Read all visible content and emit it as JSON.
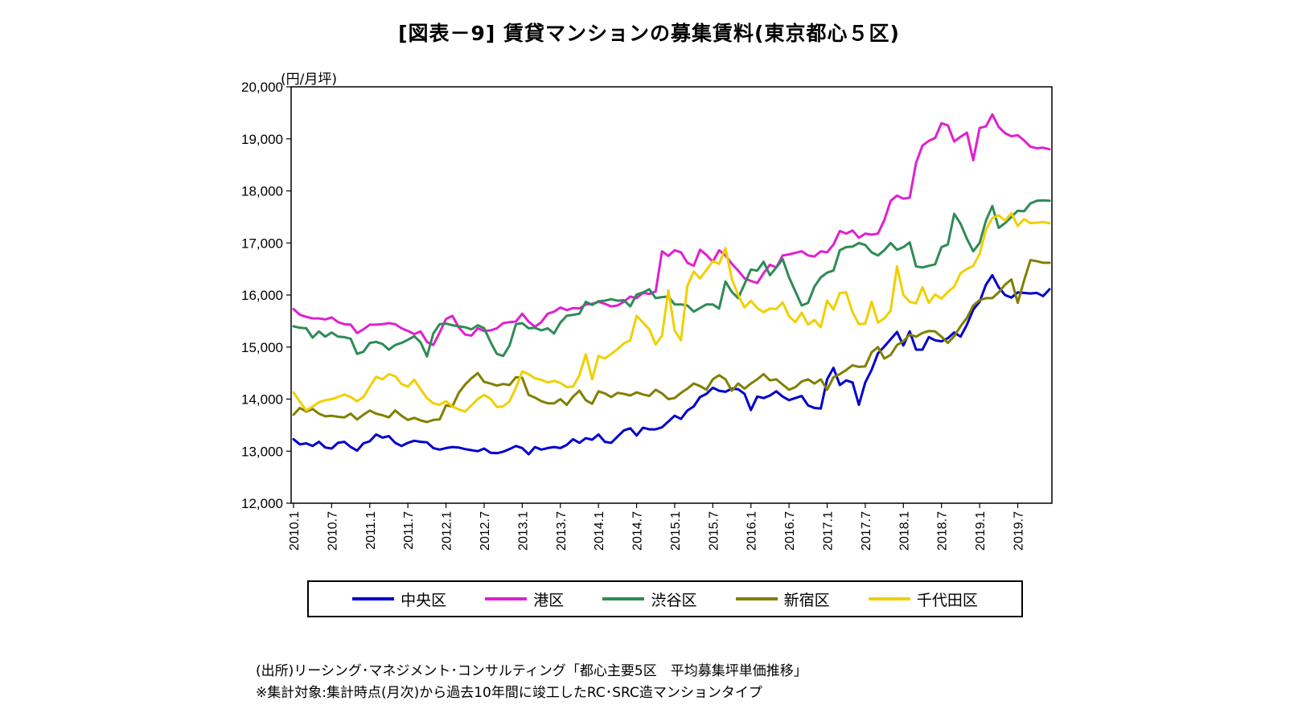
{
  "chart_data": {
    "type": "line",
    "title": "[図表－9] 賃貸マンションの募集賃料(東京都心５区)",
    "unit": "(円/月坪)",
    "ylim": [
      12000,
      20000
    ],
    "y_ticks": [
      "20,000",
      "19,000",
      "18,000",
      "17,000",
      "16,000",
      "15,000",
      "14,000",
      "13,000",
      "12,000"
    ],
    "x_ticks": [
      "2010.1",
      "2010.7",
      "2011.1",
      "2011.7",
      "2012.1",
      "2012.7",
      "2013.1",
      "2013.7",
      "2014.1",
      "2014.7",
      "2015.1",
      "2015.7",
      "2016.1",
      "2016.7",
      "2017.1",
      "2017.7",
      "2018.1",
      "2018.7",
      "2019.1",
      "2019.7"
    ],
    "x_range": "2010.1 - 2019.10 (monthly)",
    "grid": false,
    "legend_position": "bottom",
    "series": [
      {
        "name": "中央区",
        "color": "#0000CC",
        "values": [
          13230,
          13130,
          13150,
          13100,
          13180,
          13070,
          13050,
          13160,
          13180,
          13080,
          13010,
          13150,
          13190,
          13320,
          13260,
          13290,
          13160,
          13100,
          13160,
          13200,
          13180,
          13170,
          13060,
          13030,
          13060,
          13080,
          13070,
          13040,
          13020,
          13000,
          13050,
          12970,
          12960,
          12990,
          13040,
          13100,
          13060,
          12940,
          13080,
          13030,
          13060,
          13080,
          13060,
          13120,
          13230,
          13160,
          13250,
          13220,
          13320,
          13180,
          13160,
          13280,
          13400,
          13440,
          13300,
          13450,
          13420,
          13420,
          13460,
          13570,
          13680,
          13620,
          13780,
          13860,
          14040,
          14100,
          14220,
          14160,
          14140,
          14200,
          14190,
          14100,
          13790,
          14050,
          14020,
          14070,
          14150,
          14050,
          13980,
          14020,
          14060,
          13880,
          13830,
          13820,
          14380,
          14600,
          14270,
          14360,
          14320,
          13890,
          14320,
          14560,
          14880,
          15010,
          15150,
          15290,
          15030,
          15300,
          14950,
          14950,
          15190,
          15130,
          15110,
          15170,
          15280,
          15200,
          15430,
          15720,
          15870,
          16200,
          16380,
          16150,
          16000,
          15950,
          16050,
          16040,
          16030,
          16040,
          15980,
          16110
        ]
      },
      {
        "name": "港区",
        "color": "#E020D0",
        "values": [
          15730,
          15620,
          15580,
          15550,
          15550,
          15530,
          15570,
          15480,
          15440,
          15430,
          15270,
          15340,
          15430,
          15430,
          15440,
          15460,
          15440,
          15360,
          15310,
          15250,
          15300,
          15100,
          15040,
          15280,
          15540,
          15600,
          15380,
          15240,
          15220,
          15360,
          15310,
          15320,
          15360,
          15460,
          15480,
          15490,
          15640,
          15490,
          15390,
          15480,
          15640,
          15680,
          15760,
          15710,
          15750,
          15740,
          15820,
          15830,
          15870,
          15830,
          15780,
          15800,
          15870,
          15970,
          15940,
          16040,
          16020,
          16070,
          16840,
          16750,
          16860,
          16820,
          16620,
          16560,
          16870,
          16770,
          16640,
          16860,
          16760,
          16600,
          16470,
          16320,
          16270,
          16230,
          16420,
          16580,
          16530,
          16760,
          16780,
          16810,
          16840,
          16760,
          16740,
          16840,
          16820,
          16970,
          17230,
          17180,
          17240,
          17100,
          17180,
          17160,
          17180,
          17440,
          17810,
          17910,
          17850,
          17870,
          18540,
          18870,
          18960,
          19020,
          19300,
          19260,
          18950,
          19040,
          19120,
          18590,
          19210,
          19240,
          19470,
          19230,
          19110,
          19050,
          19070,
          18970,
          18850,
          18820,
          18830,
          18800
        ]
      },
      {
        "name": "渋谷区",
        "color": "#2E8B57",
        "values": [
          15400,
          15370,
          15360,
          15180,
          15300,
          15200,
          15280,
          15200,
          15190,
          15160,
          14870,
          14910,
          15080,
          15100,
          15060,
          14950,
          15040,
          15080,
          15140,
          15210,
          15090,
          14820,
          15260,
          15440,
          15450,
          15420,
          15400,
          15380,
          15340,
          15420,
          15360,
          15100,
          14870,
          14830,
          15030,
          15440,
          15460,
          15360,
          15370,
          15320,
          15360,
          15260,
          15470,
          15600,
          15620,
          15640,
          15870,
          15810,
          15880,
          15890,
          15920,
          15890,
          15900,
          15780,
          16010,
          16050,
          16110,
          15940,
          15960,
          15970,
          15820,
          15820,
          15800,
          15680,
          15750,
          15820,
          15820,
          15740,
          16260,
          16060,
          15940,
          16210,
          16490,
          16470,
          16640,
          16380,
          16530,
          16690,
          16340,
          16070,
          15800,
          15850,
          16160,
          16340,
          16430,
          16470,
          16860,
          16920,
          16930,
          17000,
          16960,
          16820,
          16760,
          16860,
          17000,
          16870,
          16920,
          17010,
          16550,
          16530,
          16560,
          16590,
          16920,
          16970,
          17560,
          17370,
          17080,
          16840,
          17000,
          17430,
          17710,
          17290,
          17380,
          17500,
          17620,
          17610,
          17760,
          17810,
          17820,
          17810
        ]
      },
      {
        "name": "新宿区",
        "color": "#808000",
        "values": [
          13700,
          13830,
          13760,
          13810,
          13720,
          13670,
          13680,
          13660,
          13650,
          13720,
          13610,
          13700,
          13780,
          13720,
          13690,
          13650,
          13780,
          13680,
          13600,
          13640,
          13590,
          13560,
          13600,
          13610,
          13880,
          13860,
          14120,
          14280,
          14400,
          14500,
          14330,
          14300,
          14260,
          14290,
          14270,
          14420,
          14410,
          14080,
          14030,
          13960,
          13920,
          13920,
          14000,
          13890,
          14050,
          14160,
          13980,
          13910,
          14150,
          14110,
          14040,
          14120,
          14100,
          14070,
          14130,
          14090,
          14060,
          14180,
          14110,
          14000,
          14020,
          14120,
          14200,
          14300,
          14250,
          14180,
          14380,
          14460,
          14380,
          14160,
          14300,
          14200,
          14300,
          14380,
          14480,
          14360,
          14380,
          14280,
          14180,
          14230,
          14340,
          14380,
          14300,
          14380,
          14180,
          14420,
          14480,
          14560,
          14650,
          14620,
          14630,
          14900,
          15000,
          14780,
          14850,
          15040,
          15110,
          15240,
          15200,
          15270,
          15310,
          15300,
          15200,
          15080,
          15210,
          15400,
          15560,
          15800,
          15900,
          15940,
          15940,
          16050,
          16200,
          16300,
          15850,
          16280,
          16670,
          16650,
          16620,
          16620
        ]
      },
      {
        "name": "千代田区",
        "color": "#F0D000",
        "values": [
          14130,
          13950,
          13780,
          13860,
          13940,
          13980,
          14000,
          14040,
          14090,
          14040,
          13960,
          14040,
          14240,
          14430,
          14380,
          14480,
          14440,
          14290,
          14240,
          14370,
          14190,
          14020,
          13920,
          13890,
          13960,
          13860,
          13800,
          13760,
          13880,
          14000,
          14080,
          14010,
          13850,
          13860,
          13960,
          14220,
          14530,
          14480,
          14400,
          14370,
          14320,
          14350,
          14310,
          14230,
          14240,
          14460,
          14860,
          14380,
          14830,
          14780,
          14870,
          14960,
          15070,
          15130,
          15600,
          15470,
          15340,
          15050,
          15220,
          16090,
          15320,
          15130,
          16170,
          16450,
          16320,
          16480,
          16650,
          16600,
          16900,
          16310,
          16000,
          15760,
          15890,
          15750,
          15670,
          15740,
          15730,
          15860,
          15590,
          15480,
          15660,
          15430,
          15520,
          15380,
          15890,
          15720,
          16040,
          16050,
          15670,
          15440,
          15450,
          15870,
          15470,
          15550,
          15700,
          16550,
          16000,
          15870,
          15840,
          16150,
          15850,
          16010,
          15930,
          16060,
          16160,
          16420,
          16500,
          16560,
          16790,
          17250,
          17480,
          17530,
          17430,
          17570,
          17330,
          17460,
          17380,
          17390,
          17400,
          17380
        ]
      }
    ]
  },
  "source": {
    "line1": "(出所)リーシング･マネジメント･コンサルティング「都心主要5区　平均募集坪単価推移」",
    "line2": "※集計対象:集計時点(月次)から過去10年間に竣工したRC･SRC造マンションタイプ"
  }
}
